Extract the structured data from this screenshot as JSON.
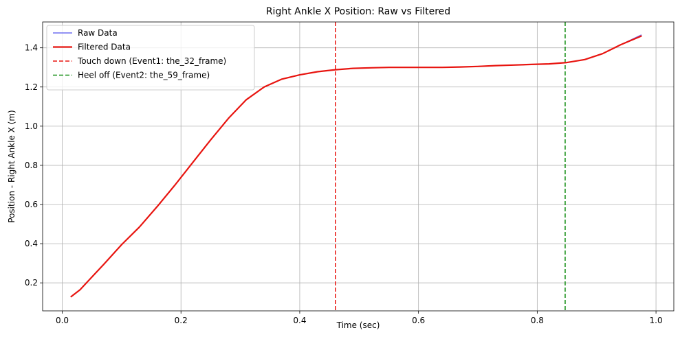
{
  "chart_data": {
    "type": "line",
    "title": "Right Ankle X Position: Raw vs Filtered",
    "xlabel": "Time (sec)",
    "ylabel": "Position - Right Ankle X (m)",
    "xlim": [
      -0.033,
      1.03
    ],
    "ylim": [
      0.057,
      1.532
    ],
    "xticks": [
      0.0,
      0.2,
      0.4,
      0.6,
      0.8,
      1.0
    ],
    "xtick_labels": [
      "0.0",
      "0.2",
      "0.4",
      "0.6",
      "0.8",
      "1.0"
    ],
    "yticks": [
      0.2,
      0.4,
      0.6,
      0.8,
      1.0,
      1.2,
      1.4
    ],
    "ytick_labels": [
      "0.2",
      "0.4",
      "0.6",
      "0.8",
      "1.0",
      "1.2",
      "1.4"
    ],
    "grid": true,
    "legend_position": "top-left",
    "series": [
      {
        "name": "Raw Data",
        "color": "#6f6ff0",
        "style": "solid",
        "x": [
          0.015,
          0.03,
          0.05,
          0.07,
          0.1,
          0.13,
          0.16,
          0.19,
          0.22,
          0.25,
          0.28,
          0.31,
          0.34,
          0.37,
          0.4,
          0.43,
          0.46,
          0.49,
          0.52,
          0.55,
          0.58,
          0.61,
          0.64,
          0.67,
          0.7,
          0.73,
          0.76,
          0.79,
          0.82,
          0.85,
          0.88,
          0.91,
          0.94,
          0.975
        ],
        "y": [
          0.13,
          0.165,
          0.23,
          0.295,
          0.395,
          0.485,
          0.59,
          0.7,
          0.815,
          0.93,
          1.04,
          1.135,
          1.2,
          1.24,
          1.262,
          1.278,
          1.288,
          1.295,
          1.298,
          1.3,
          1.3,
          1.3,
          1.3,
          1.302,
          1.305,
          1.309,
          1.312,
          1.315,
          1.318,
          1.325,
          1.34,
          1.37,
          1.415,
          1.465
        ]
      },
      {
        "name": "Filtered Data",
        "color": "#e8140f",
        "style": "solid",
        "x": [
          0.015,
          0.03,
          0.05,
          0.07,
          0.1,
          0.13,
          0.16,
          0.19,
          0.22,
          0.25,
          0.28,
          0.31,
          0.34,
          0.37,
          0.4,
          0.43,
          0.46,
          0.49,
          0.52,
          0.55,
          0.58,
          0.61,
          0.64,
          0.67,
          0.7,
          0.73,
          0.76,
          0.79,
          0.82,
          0.85,
          0.88,
          0.91,
          0.94,
          0.975
        ],
        "y": [
          0.13,
          0.165,
          0.23,
          0.295,
          0.395,
          0.485,
          0.59,
          0.7,
          0.815,
          0.93,
          1.04,
          1.135,
          1.2,
          1.24,
          1.262,
          1.278,
          1.288,
          1.295,
          1.298,
          1.3,
          1.3,
          1.3,
          1.3,
          1.302,
          1.305,
          1.309,
          1.312,
          1.315,
          1.318,
          1.325,
          1.34,
          1.37,
          1.415,
          1.46
        ]
      }
    ],
    "vlines": [
      {
        "name": "Touch down (Event1: the_32_frame)",
        "x": 0.46,
        "color": "#e8140f",
        "style": "dashed"
      },
      {
        "name": "Heel off (Event2: the_59_frame)",
        "x": 0.847,
        "color": "#118c11",
        "style": "dashed"
      }
    ]
  }
}
